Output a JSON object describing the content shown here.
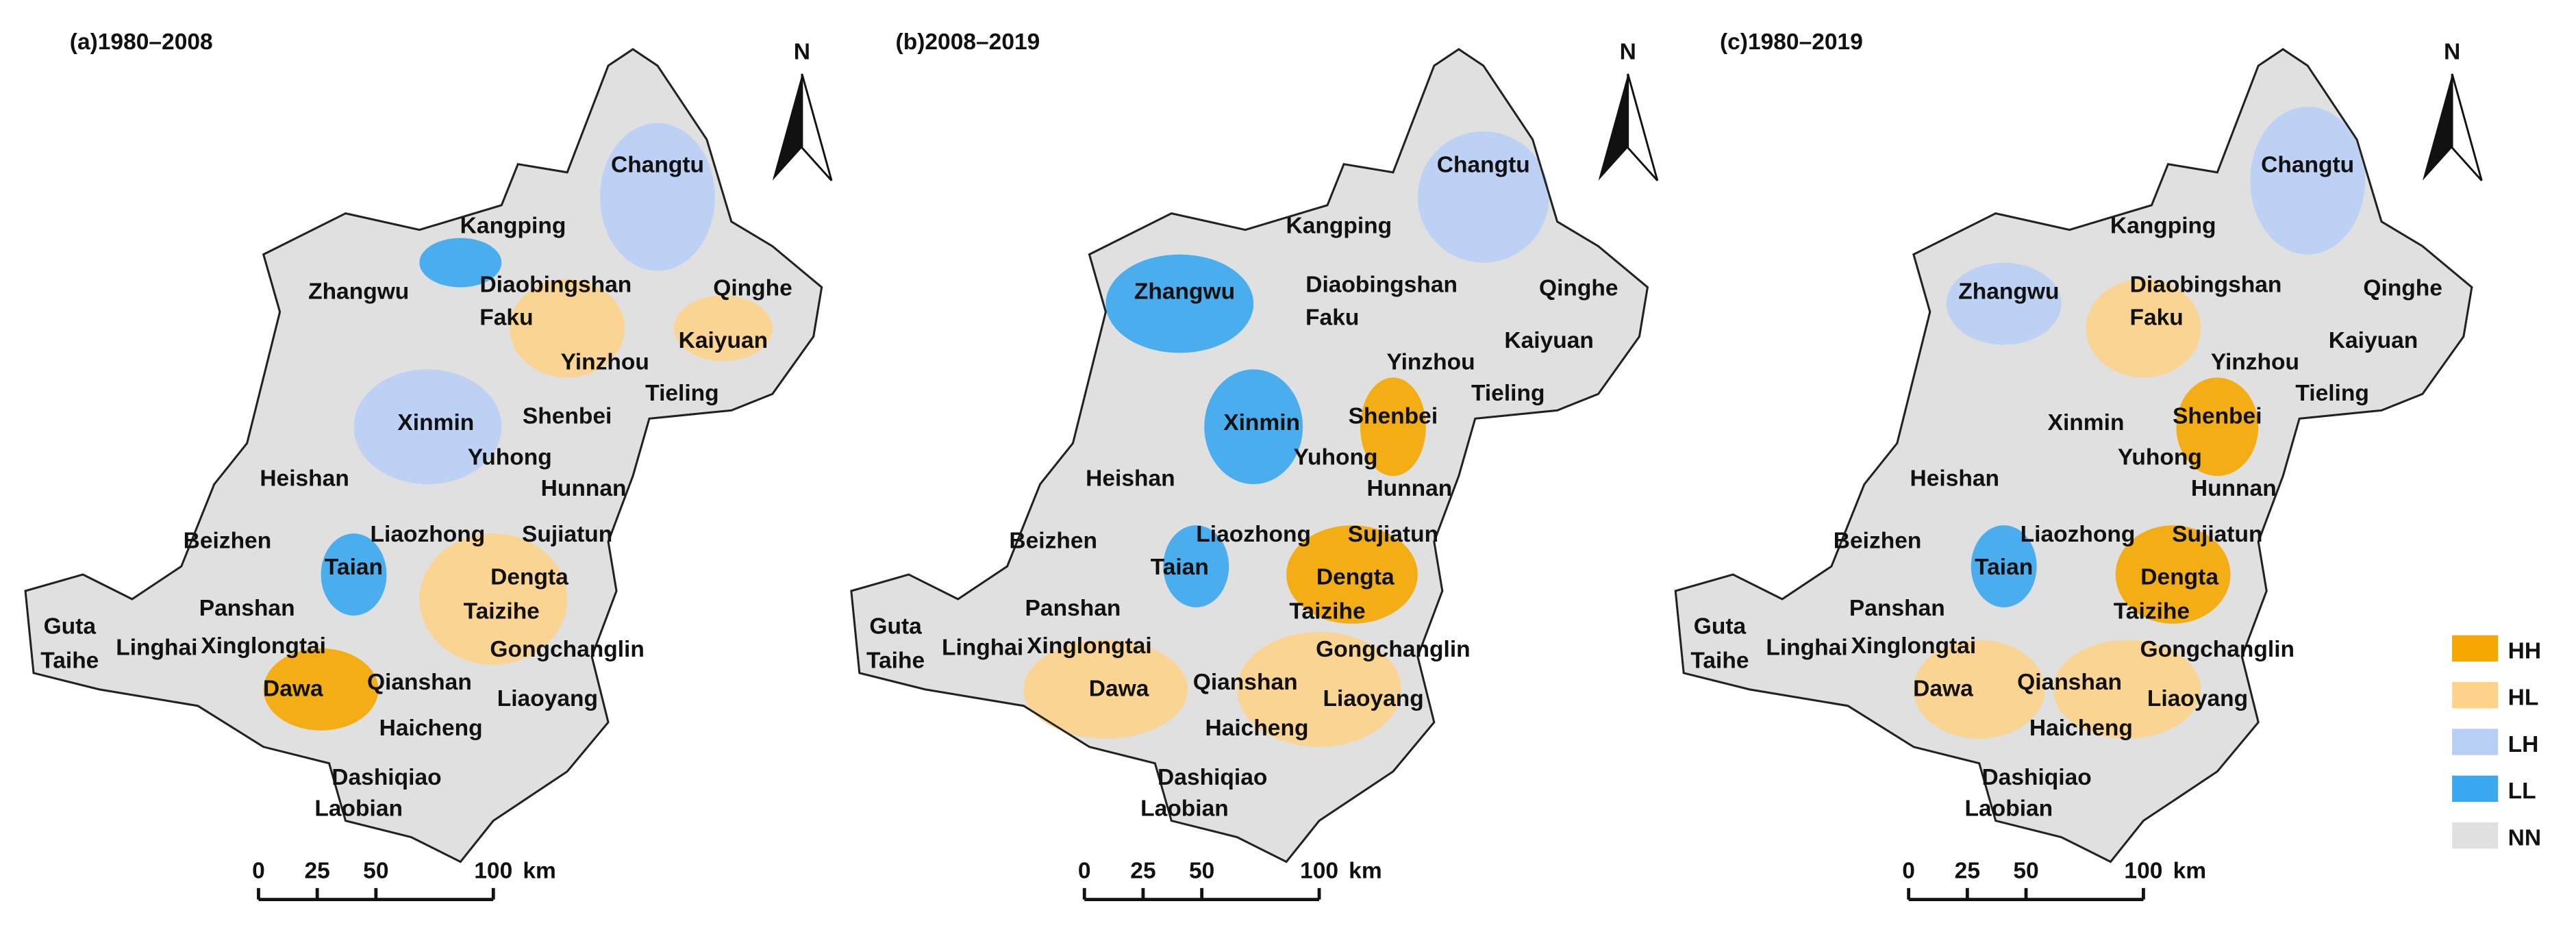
{
  "panels": [
    {
      "title": "(a)1980–2008"
    },
    {
      "title": "(b)2008–2019"
    },
    {
      "title": "(c)1980–2019"
    }
  ],
  "places": [
    "Changtu",
    "Kangping",
    "Zhangwu",
    "Diaobingshan",
    "Qinghe",
    "Faku",
    "Kaiyuan",
    "Yinzhou",
    "Tieling",
    "Xinmin",
    "Shenbei",
    "Yuhong",
    "Hunnan",
    "Heishan",
    "Beizhen",
    "Liaozhong",
    "Sujiatun",
    "Taian",
    "Dengta",
    "Panshan",
    "Taizihe",
    "Guta",
    "Taihe",
    "Linghai",
    "Xinglongtai",
    "Gongchanglin",
    "Qianshan",
    "Dawa",
    "Liaoyang",
    "Haicheng",
    "Dashiqiao",
    "Laobian"
  ],
  "north": "N",
  "scale_bar": {
    "ticks": [
      0,
      25,
      50,
      100
    ],
    "unit": "km"
  },
  "legend": [
    {
      "label": "HH",
      "color": "#f5a800"
    },
    {
      "label": "HL",
      "color": "#fdd38a"
    },
    {
      "label": "LH",
      "color": "#b8cff5"
    },
    {
      "label": "LL",
      "color": "#3aa8f0"
    },
    {
      "label": "NN",
      "color": "#e0e0e0"
    }
  ]
}
